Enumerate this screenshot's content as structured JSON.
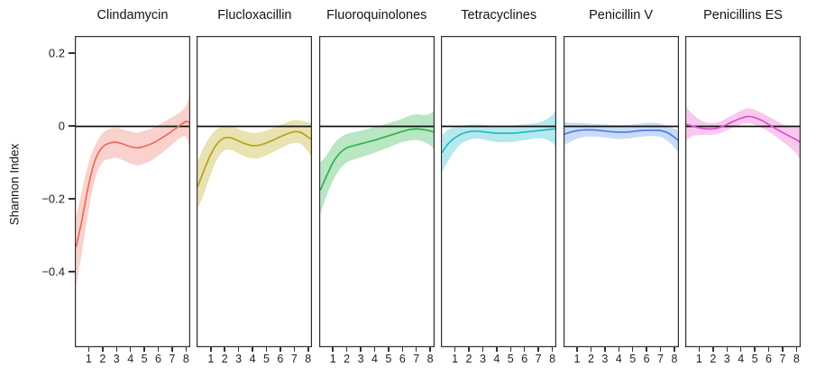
{
  "style": {
    "background": "#ffffff",
    "panel_border_color": "#2e2e2e",
    "zero_line_color": "#111111",
    "tick_color": "#333333",
    "text_color": "#1a1a1a"
  },
  "chart_data": {
    "type": "line",
    "subtype": "faceted smooth trend with confidence ribbon",
    "title": "",
    "xlabel": "",
    "ylabel": "Shannon Index",
    "grid": false,
    "legend": false,
    "zero_reference_line": 0,
    "xlim": [
      0,
      8.3
    ],
    "ylim": [
      -0.61,
      0.25
    ],
    "x_ticks": [
      1,
      2,
      3,
      4,
      5,
      6,
      7,
      8
    ],
    "y_ticks": [
      {
        "label": "0.2",
        "value": 0.2
      },
      {
        "label": "0",
        "value": 0
      },
      {
        "label": "−0.2",
        "value": -0.2
      },
      {
        "label": "−0.4",
        "value": -0.4
      }
    ],
    "x": [
      0.1,
      0.5,
      1,
      1.5,
      2,
      2.5,
      3,
      3.5,
      4,
      4.5,
      5,
      5.5,
      6,
      6.5,
      7,
      7.5,
      8,
      8.3
    ],
    "panels": [
      {
        "title": "Clindamycin",
        "line_color": "#ee6a5a",
        "band_color": "#f9d2cd",
        "mean": [
          -0.33,
          -0.26,
          -0.16,
          -0.09,
          -0.058,
          -0.047,
          -0.045,
          -0.05,
          -0.057,
          -0.06,
          -0.056,
          -0.049,
          -0.039,
          -0.027,
          -0.014,
          0.0,
          0.012,
          0.007
        ],
        "lower": [
          -0.44,
          -0.35,
          -0.23,
          -0.14,
          -0.1,
          -0.09,
          -0.088,
          -0.095,
          -0.103,
          -0.108,
          -0.103,
          -0.095,
          -0.082,
          -0.067,
          -0.051,
          -0.035,
          -0.03,
          -0.07
        ],
        "upper": [
          -0.25,
          -0.18,
          -0.1,
          -0.05,
          -0.02,
          -0.008,
          -0.005,
          -0.01,
          -0.015,
          -0.018,
          -0.013,
          -0.007,
          0.002,
          0.013,
          0.024,
          0.036,
          0.056,
          0.09
        ]
      },
      {
        "title": "Flucloxacillin",
        "line_color": "#b5a41e",
        "band_color": "#e9e2b1",
        "mean": [
          -0.165,
          -0.125,
          -0.08,
          -0.048,
          -0.033,
          -0.033,
          -0.041,
          -0.049,
          -0.054,
          -0.053,
          -0.047,
          -0.039,
          -0.03,
          -0.022,
          -0.016,
          -0.018,
          -0.03,
          -0.038
        ],
        "lower": [
          -0.225,
          -0.19,
          -0.135,
          -0.09,
          -0.068,
          -0.066,
          -0.075,
          -0.084,
          -0.089,
          -0.088,
          -0.081,
          -0.072,
          -0.062,
          -0.053,
          -0.047,
          -0.05,
          -0.07,
          -0.085
        ],
        "upper": [
          -0.095,
          -0.06,
          -0.028,
          -0.007,
          0.0,
          -0.001,
          -0.008,
          -0.015,
          -0.019,
          -0.018,
          -0.013,
          -0.006,
          0.002,
          0.01,
          0.016,
          0.015,
          0.01,
          0.008
        ]
      },
      {
        "title": "Fluoroquinolones",
        "line_color": "#2db350",
        "band_color": "#b9e6c3",
        "mean": [
          -0.175,
          -0.14,
          -0.1,
          -0.074,
          -0.06,
          -0.054,
          -0.049,
          -0.044,
          -0.039,
          -0.033,
          -0.027,
          -0.021,
          -0.015,
          -0.01,
          -0.008,
          -0.01,
          -0.014,
          -0.017
        ],
        "lower": [
          -0.24,
          -0.195,
          -0.15,
          -0.118,
          -0.1,
          -0.092,
          -0.086,
          -0.08,
          -0.073,
          -0.066,
          -0.059,
          -0.051,
          -0.044,
          -0.04,
          -0.039,
          -0.043,
          -0.054,
          -0.065
        ],
        "upper": [
          -0.1,
          -0.082,
          -0.052,
          -0.032,
          -0.022,
          -0.017,
          -0.013,
          -0.008,
          -0.003,
          0.002,
          0.008,
          0.014,
          0.02,
          0.028,
          0.032,
          0.03,
          0.034,
          0.044
        ]
      },
      {
        "title": "Tetracyclines",
        "line_color": "#23b7c4",
        "band_color": "#b6e9ed",
        "mean": [
          -0.072,
          -0.05,
          -0.033,
          -0.022,
          -0.016,
          -0.014,
          -0.016,
          -0.018,
          -0.02,
          -0.02,
          -0.02,
          -0.019,
          -0.017,
          -0.015,
          -0.013,
          -0.011,
          -0.009,
          -0.008
        ],
        "lower": [
          -0.126,
          -0.098,
          -0.068,
          -0.048,
          -0.039,
          -0.035,
          -0.037,
          -0.041,
          -0.044,
          -0.045,
          -0.044,
          -0.042,
          -0.039,
          -0.036,
          -0.034,
          -0.036,
          -0.046,
          -0.058
        ],
        "upper": [
          -0.025,
          -0.01,
          -0.004,
          0.0,
          0.003,
          0.004,
          0.003,
          0.001,
          0.0,
          0.0,
          0.001,
          0.002,
          0.004,
          0.006,
          0.009,
          0.016,
          0.03,
          0.044
        ]
      },
      {
        "title": "Penicillin V",
        "line_color": "#4f7fe0",
        "band_color": "#c9dbf8",
        "mean": [
          -0.022,
          -0.017,
          -0.013,
          -0.011,
          -0.011,
          -0.012,
          -0.014,
          -0.016,
          -0.017,
          -0.017,
          -0.015,
          -0.013,
          -0.012,
          -0.012,
          -0.013,
          -0.019,
          -0.032,
          -0.042
        ],
        "lower": [
          -0.052,
          -0.043,
          -0.035,
          -0.03,
          -0.029,
          -0.03,
          -0.032,
          -0.034,
          -0.036,
          -0.035,
          -0.033,
          -0.03,
          -0.028,
          -0.028,
          -0.031,
          -0.042,
          -0.06,
          -0.075
        ],
        "upper": [
          0.01,
          0.009,
          0.008,
          0.007,
          0.006,
          0.005,
          0.004,
          0.003,
          0.002,
          0.003,
          0.004,
          0.006,
          0.008,
          0.008,
          0.006,
          0.0,
          -0.008,
          -0.014
        ]
      },
      {
        "title": "Penicillins ES",
        "line_color": "#e14fc8",
        "band_color": "#f8c9ee",
        "mean": [
          0.004,
          0.0,
          -0.005,
          -0.008,
          -0.008,
          -0.004,
          0.004,
          0.013,
          0.021,
          0.026,
          0.023,
          0.015,
          0.004,
          -0.007,
          -0.018,
          -0.028,
          -0.038,
          -0.046
        ],
        "lower": [
          -0.04,
          -0.028,
          -0.025,
          -0.025,
          -0.024,
          -0.02,
          -0.012,
          -0.003,
          0.004,
          0.007,
          0.003,
          -0.005,
          -0.016,
          -0.029,
          -0.043,
          -0.058,
          -0.077,
          -0.095
        ],
        "upper": [
          0.05,
          0.034,
          0.018,
          0.01,
          0.008,
          0.012,
          0.022,
          0.032,
          0.042,
          0.048,
          0.044,
          0.036,
          0.026,
          0.015,
          0.005,
          -0.002,
          -0.004,
          -0.002
        ]
      }
    ]
  }
}
